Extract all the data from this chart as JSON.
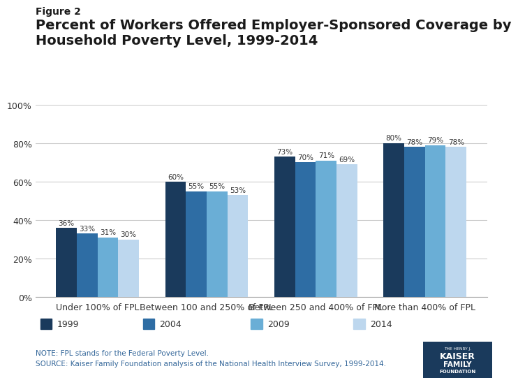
{
  "figure_label": "Figure 2",
  "title": "Percent of Workers Offered Employer-Sponsored Coverage by\nHousehold Poverty Level, 1999-2014",
  "categories": [
    "Under 100% of FPL",
    "Between 100 and 250% of FPL",
    "Between 250 and 400% of FPL",
    "More than 400% of FPL"
  ],
  "years": [
    "1999",
    "2004",
    "2009",
    "2014"
  ],
  "values": {
    "1999": [
      36,
      60,
      73,
      80
    ],
    "2004": [
      33,
      55,
      70,
      78
    ],
    "2009": [
      31,
      55,
      71,
      79
    ],
    "2014": [
      30,
      53,
      69,
      78
    ]
  },
  "bar_colors": {
    "1999": "#1a3a5c",
    "2004": "#2e6da4",
    "2009": "#6aaed6",
    "2014": "#bdd7ee"
  },
  "ylim": [
    0,
    100
  ],
  "yticks": [
    0,
    20,
    40,
    60,
    80,
    100
  ],
  "ytick_labels": [
    "0%",
    "20%",
    "40%",
    "60%",
    "80%",
    "100%"
  ],
  "note_line1": "NOTE: FPL stands for the Federal Poverty Level.",
  "note_line2": "SOURCE: Kaiser Family Foundation analysis of the National Health Interview Survey, 1999-2014.",
  "note_color": "#336699",
  "background_color": "#ffffff",
  "bar_width": 0.19,
  "label_fontsize": 7.5,
  "axis_fontsize": 9,
  "title_fontsize": 14,
  "figure_label_fontsize": 10
}
